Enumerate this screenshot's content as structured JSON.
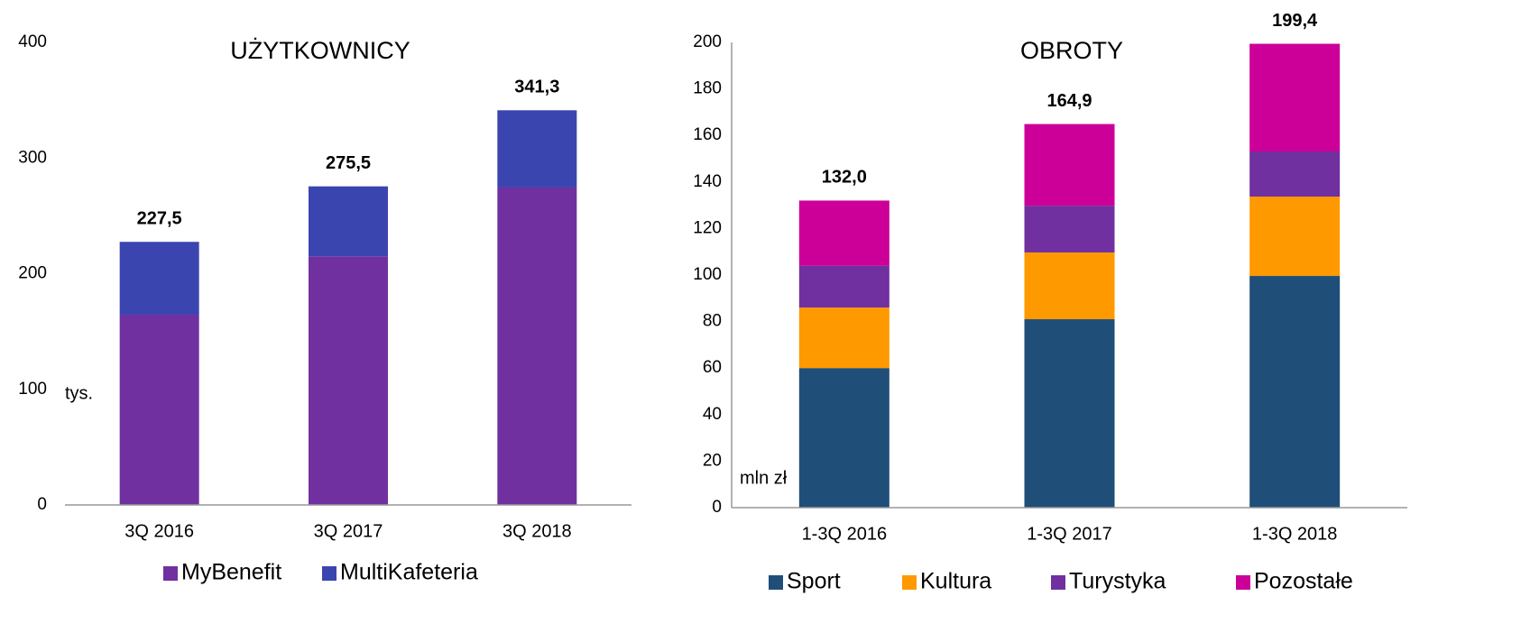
{
  "chart_data": [
    {
      "type": "bar",
      "stacked": true,
      "title": "UŻYTKOWNICY",
      "unit_label": "tys.",
      "categories": [
        "3Q 2016",
        "3Q 2017",
        "3Q 2018"
      ],
      "series": [
        {
          "name": "MyBenefit",
          "color": "#7030a0",
          "values": [
            164.5,
            215,
            274.5
          ]
        },
        {
          "name": "MultiKafeteria",
          "color": "#3a45b0",
          "values": [
            63,
            60.5,
            66.8
          ]
        }
      ],
      "totals": [
        227.5,
        275.5,
        341.3
      ],
      "total_labels": [
        "227,5",
        "275,5",
        "341,3"
      ],
      "ylim": [
        0,
        400
      ],
      "yticks": [
        0,
        100,
        200,
        300,
        400
      ],
      "y_axis_line": false
    },
    {
      "type": "bar",
      "stacked": true,
      "title": "OBROTY",
      "unit_label": "mln zł",
      "categories": [
        "1-3Q 2016",
        "1-3Q 2017",
        "1-3Q 2018"
      ],
      "series": [
        {
          "name": "Sport",
          "color": "#1f4e79",
          "values": [
            60,
            81,
            99.6
          ]
        },
        {
          "name": "Kultura",
          "color": "#ff9900",
          "values": [
            26,
            28.7,
            34.1
          ]
        },
        {
          "name": "Turystyka",
          "color": "#7030a0",
          "values": [
            18,
            20.1,
            19.4
          ]
        },
        {
          "name": "Pozostałe",
          "color": "#cc0099",
          "values": [
            28,
            35.1,
            46.3
          ]
        }
      ],
      "totals": [
        132.0,
        164.9,
        199.4
      ],
      "total_labels": [
        "132,0",
        "164,9",
        "199,4"
      ],
      "ylim": [
        0,
        200
      ],
      "yticks": [
        0,
        20,
        40,
        60,
        80,
        100,
        120,
        140,
        160,
        180,
        200
      ],
      "y_axis_line": true
    }
  ]
}
